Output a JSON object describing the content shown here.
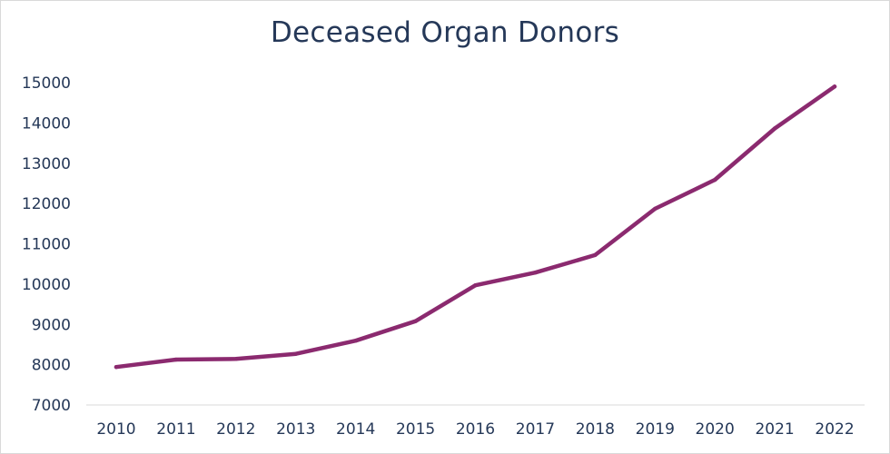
{
  "chart_data": {
    "type": "line",
    "title": "Deceased Organ Donors",
    "xlabel": "",
    "ylabel": "",
    "categories": [
      "2010",
      "2011",
      "2012",
      "2013",
      "2014",
      "2015",
      "2016",
      "2017",
      "2018",
      "2019",
      "2020",
      "2021",
      "2022"
    ],
    "series": [
      {
        "name": "Deceased Organ Donors",
        "values": [
          7943,
          8126,
          8143,
          8268,
          8596,
          9079,
          9971,
          10286,
          10721,
          11870,
          12588,
          13863,
          14903
        ],
        "color": "#8b2a6f"
      }
    ],
    "ylim": [
      7000,
      15000
    ],
    "yticks": [
      "7000",
      "8000",
      "9000",
      "10000",
      "11000",
      "12000",
      "13000",
      "14000",
      "15000"
    ],
    "grid": false,
    "legend": "none"
  },
  "colors": {
    "text": "#253858",
    "axis": "#d9d9d9",
    "line": "#8b2a6f"
  }
}
